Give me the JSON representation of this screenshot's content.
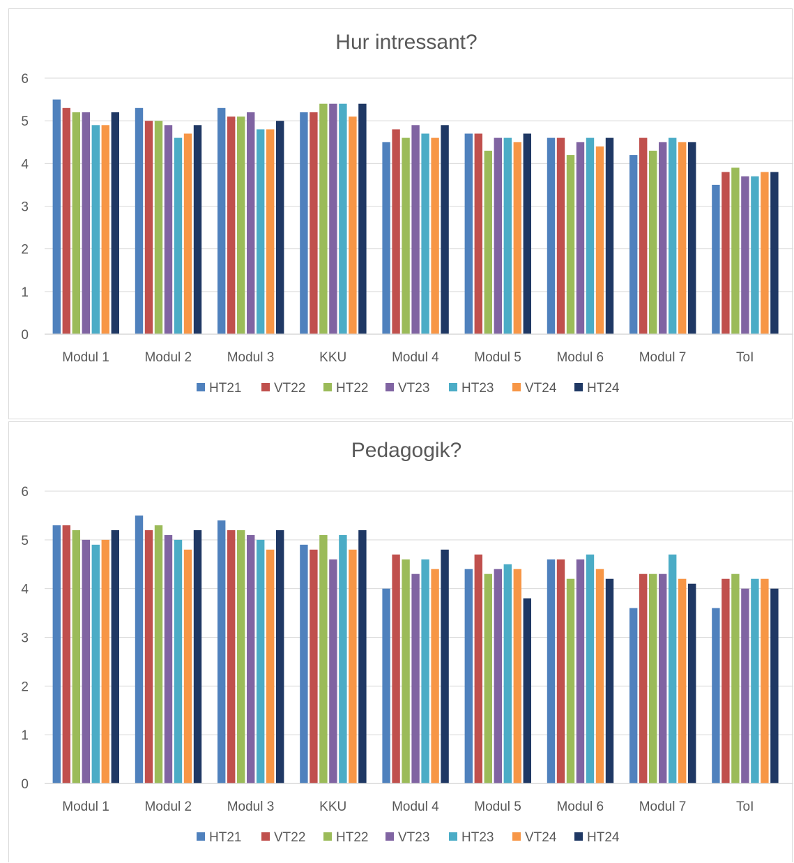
{
  "colors": {
    "HT21": "#4f81bd",
    "VT22": "#c0504d",
    "HT22": "#9bbb59",
    "VT23": "#8064a2",
    "HT23": "#4bacc6",
    "VT24": "#f79646",
    "HT24": "#1f3864",
    "grid": "#d9d9d9",
    "text": "#595959"
  },
  "chart_data": [
    {
      "type": "bar",
      "title": "Hur intressant?",
      "categories": [
        "Modul 1",
        "Modul 2",
        "Modul 3",
        "KKU",
        "Modul 4",
        "Modul 5",
        "Modul 6",
        "Modul 7",
        "ToI"
      ],
      "ylim": [
        0,
        6
      ],
      "yticks": [
        "0",
        "1",
        "2",
        "3",
        "4",
        "5",
        "6"
      ],
      "grid": true,
      "legend": "bottom",
      "series": [
        {
          "name": "HT21",
          "values": [
            5.5,
            5.3,
            5.3,
            5.2,
            4.5,
            4.7,
            4.6,
            4.2,
            3.5
          ]
        },
        {
          "name": "VT22",
          "values": [
            5.3,
            5.0,
            5.1,
            5.2,
            4.8,
            4.7,
            4.6,
            4.6,
            3.8
          ]
        },
        {
          "name": "HT22",
          "values": [
            5.2,
            5.0,
            5.1,
            5.4,
            4.6,
            4.3,
            4.2,
            4.3,
            3.9
          ]
        },
        {
          "name": "VT23",
          "values": [
            5.2,
            4.9,
            5.2,
            5.4,
            4.9,
            4.6,
            4.5,
            4.5,
            3.7
          ]
        },
        {
          "name": "HT23",
          "values": [
            4.9,
            4.6,
            4.8,
            5.4,
            4.7,
            4.6,
            4.6,
            4.6,
            3.7
          ]
        },
        {
          "name": "VT24",
          "values": [
            4.9,
            4.7,
            4.8,
            5.1,
            4.6,
            4.5,
            4.4,
            4.5,
            3.8
          ]
        },
        {
          "name": "HT24",
          "values": [
            5.2,
            4.9,
            5.0,
            5.4,
            4.9,
            4.7,
            4.6,
            4.5,
            3.8
          ]
        }
      ]
    },
    {
      "type": "bar",
      "title": "Pedagogik?",
      "categories": [
        "Modul 1",
        "Modul 2",
        "Modul 3",
        "KKU",
        "Modul 4",
        "Modul 5",
        "Modul 6",
        "Modul 7",
        "ToI"
      ],
      "ylim": [
        0,
        6
      ],
      "yticks": [
        "0",
        "1",
        "2",
        "3",
        "4",
        "5",
        "6"
      ],
      "grid": true,
      "legend": "bottom",
      "series": [
        {
          "name": "HT21",
          "values": [
            5.3,
            5.5,
            5.4,
            4.9,
            4.0,
            4.4,
            4.6,
            3.6,
            3.6
          ]
        },
        {
          "name": "VT22",
          "values": [
            5.3,
            5.2,
            5.2,
            4.8,
            4.7,
            4.7,
            4.6,
            4.3,
            4.2
          ]
        },
        {
          "name": "HT22",
          "values": [
            5.2,
            5.3,
            5.2,
            5.1,
            4.6,
            4.3,
            4.2,
            4.3,
            4.3
          ]
        },
        {
          "name": "VT23",
          "values": [
            5.0,
            5.1,
            5.1,
            4.6,
            4.3,
            4.4,
            4.6,
            4.3,
            4.0
          ]
        },
        {
          "name": "HT23",
          "values": [
            4.9,
            5.0,
            5.0,
            5.1,
            4.6,
            4.5,
            4.7,
            4.7,
            4.2
          ]
        },
        {
          "name": "VT24",
          "values": [
            5.0,
            4.8,
            4.8,
            4.8,
            4.4,
            4.4,
            4.4,
            4.2,
            4.2
          ]
        },
        {
          "name": "HT24",
          "values": [
            5.2,
            5.2,
            5.2,
            5.2,
            4.8,
            3.8,
            4.2,
            4.1,
            4.0
          ]
        }
      ]
    }
  ]
}
